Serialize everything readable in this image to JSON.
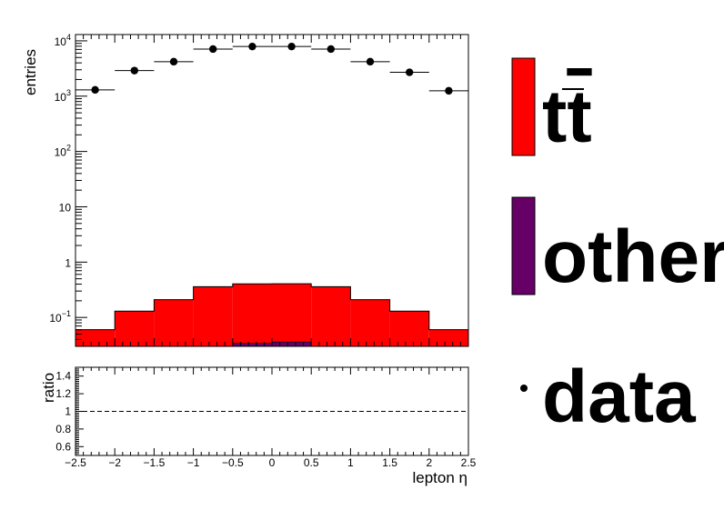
{
  "chart_data": [
    {
      "type": "bar",
      "panel": "main",
      "ylabel": "entries",
      "yscale": "log",
      "xlim": [
        -2.5,
        2.5
      ],
      "ylim": [
        0.03,
        13000
      ],
      "bin_edges": [
        -2.5,
        -2.0,
        -1.5,
        -1.0,
        -0.5,
        0.0,
        0.5,
        1.0,
        1.5,
        2.0,
        2.5
      ],
      "ytick_labels": [
        {
          "value": 10000,
          "base": "10",
          "exp": "4"
        },
        {
          "value": 1000,
          "base": "10",
          "exp": "3"
        },
        {
          "value": 100,
          "base": "10",
          "exp": "2"
        },
        {
          "value": 10,
          "base": "10",
          "exp": ""
        },
        {
          "value": 1,
          "base": "1",
          "exp": ""
        },
        {
          "value": 0.1,
          "base": "10",
          "exp": "−1"
        }
      ],
      "series": [
        {
          "name": "tt̅",
          "kind": "stacked-hist",
          "color": "#ff0000",
          "values": [
            0.06,
            0.13,
            0.21,
            0.33,
            0.37,
            0.37,
            0.33,
            0.21,
            0.13,
            0.06
          ]
        },
        {
          "name": "other",
          "kind": "stacked-hist",
          "color": "#660066",
          "values": [
            0.0,
            0.0,
            0.0,
            0.03,
            0.034,
            0.036,
            0.03,
            0.0,
            0.0,
            0.0
          ]
        },
        {
          "name": "data",
          "kind": "points",
          "color": "#000000",
          "x": [
            -2.25,
            -1.75,
            -1.25,
            -0.75,
            -0.25,
            0.25,
            0.75,
            1.25,
            1.75,
            2.25
          ],
          "values": [
            1300,
            2900,
            4200,
            7100,
            7900,
            7900,
            7100,
            4200,
            2700,
            1250
          ]
        }
      ]
    },
    {
      "type": "line",
      "panel": "ratio",
      "ylabel": "ratio",
      "xlabel": "lepton η",
      "xlim": [
        -2.5,
        2.5
      ],
      "ylim": [
        0.5,
        1.5
      ],
      "xtick_labels": [
        "−2.5",
        "−2",
        "−1.5",
        "−1",
        "−0.5",
        "0",
        "0.5",
        "1",
        "1.5",
        "2",
        "2.5"
      ],
      "ytick_labels": [
        "0.6",
        "0.8",
        "1",
        "1.2",
        "1.4"
      ],
      "series": [
        {
          "name": "",
          "x": [
            -2.5,
            2.5
          ],
          "values": [
            1.0,
            1.0
          ],
          "style": "dashed"
        }
      ]
    }
  ],
  "legend": {
    "placement": "right",
    "entries": [
      {
        "label": "tt̅",
        "color": "#ff0000",
        "style": "box"
      },
      {
        "label": "other",
        "color": "#660066",
        "style": "box"
      },
      {
        "label": "data",
        "color": "#000000",
        "style": "marker"
      }
    ]
  }
}
